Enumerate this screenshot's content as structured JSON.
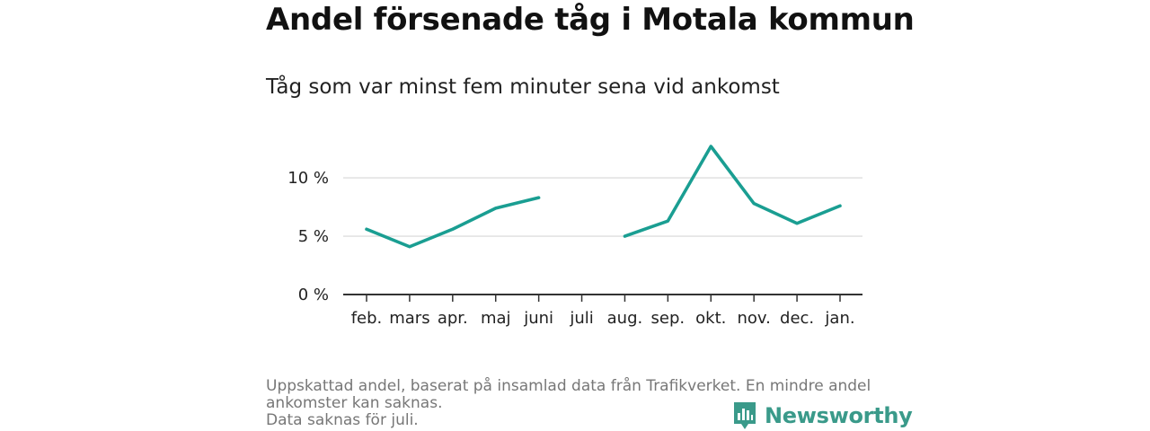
{
  "title": "Andel försenade tåg i Motala kommun",
  "subtitle": "Tåg som var minst fem minuter sena vid ankomst",
  "notes": [
    "Uppskattad andel, baserat på insamlad data från Trafikverket. En mindre andel ankomster kan saknas.",
    "Data saknas för juli."
  ],
  "brand": "Newsworthy",
  "colors": {
    "line": "#1a9e92",
    "brand": "#3a9a8a",
    "grid": "#dddddd",
    "axis": "#333333"
  },
  "chart_data": {
    "type": "line",
    "categories": [
      "feb.",
      "mars",
      "apr.",
      "maj",
      "juni",
      "juli",
      "aug.",
      "sep.",
      "okt.",
      "nov.",
      "dec.",
      "jan."
    ],
    "series": [
      {
        "values": [
          5.6,
          4.1,
          5.6,
          7.4,
          8.3,
          null,
          5.0,
          6.3,
          12.7,
          7.8,
          6.1,
          7.6
        ]
      }
    ],
    "yticks": [
      "0 %",
      "5 %",
      "10 %"
    ],
    "ytick_values": [
      0,
      5,
      10
    ],
    "ylim": [
      0,
      12.7
    ],
    "grid": true,
    "legend": "none"
  }
}
